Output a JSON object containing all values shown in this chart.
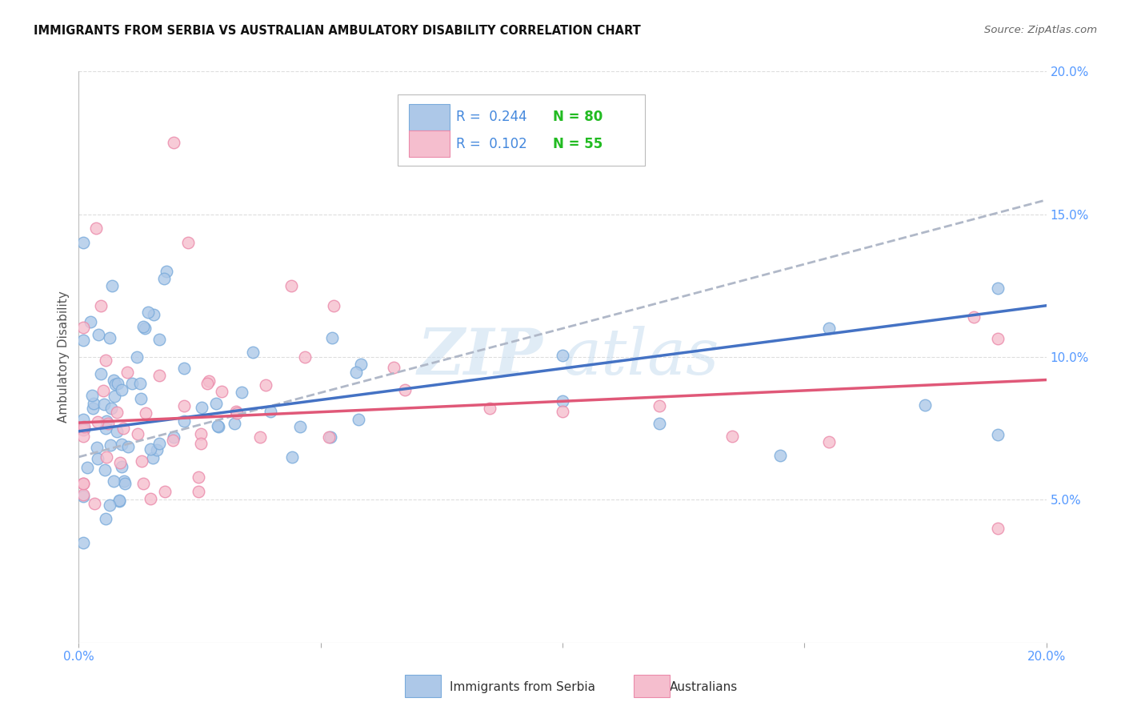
{
  "title": "IMMIGRANTS FROM SERBIA VS AUSTRALIAN AMBULATORY DISABILITY CORRELATION CHART",
  "source": "Source: ZipAtlas.com",
  "ylabel": "Ambulatory Disability",
  "x_min": 0.0,
  "x_max": 0.2,
  "y_min": 0.0,
  "y_max": 0.2,
  "series1_color": "#adc8e8",
  "series1_edge_color": "#7aabdb",
  "series2_color": "#f5bece",
  "series2_edge_color": "#eb8aaa",
  "line1_color": "#4472c4",
  "line2_color": "#e05878",
  "dashed_line_color": "#b0b8c8",
  "legend_r1": "0.244",
  "legend_n1": "80",
  "legend_r2": "0.102",
  "legend_n2": "55",
  "series1_label": "Immigrants from Serbia",
  "series2_label": "Australians",
  "watermark_zip": "ZIP",
  "watermark_atlas": "atlas",
  "r_color": "#4488dd",
  "n_color": "#22bb22",
  "title_color": "#111111",
  "source_color": "#666666",
  "tick_color": "#5599ff",
  "ylabel_color": "#555555",
  "grid_color": "#dddddd",
  "line1_intercept": 0.074,
  "line1_slope": 0.22,
  "line2_intercept": 0.077,
  "line2_slope": 0.075,
  "dashed_intercept": 0.065,
  "dashed_slope": 0.45
}
